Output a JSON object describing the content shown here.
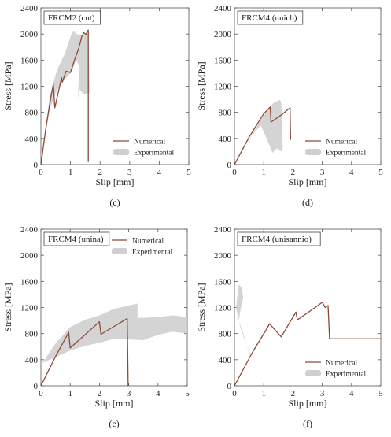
{
  "colors": {
    "numerical": "#8b4a36",
    "experimental": "#cfcfcf",
    "axis": "#555555"
  },
  "chart_data": [
    {
      "type": "line",
      "title": "FRCM2 (cut)",
      "panel_label": "(c)",
      "xlabel": "Slip [mm]",
      "ylabel": "Stress [MPa]",
      "xlim": [
        0,
        5
      ],
      "ylim": [
        0,
        2400
      ],
      "xticks": [
        0,
        1,
        2,
        3,
        4,
        5
      ],
      "yticks": [
        0,
        400,
        800,
        1200,
        1600,
        2000,
        2400
      ],
      "grid": false,
      "legend": [
        "Numerical",
        "Experimental"
      ],
      "legend_position": "bottom-right",
      "series": [
        {
          "name": "Numerical",
          "x": [
            0,
            0.18,
            0.35,
            0.42,
            0.47,
            0.7,
            0.72,
            0.85,
            1.0,
            1.15,
            1.28,
            1.38,
            1.45,
            1.52,
            1.58,
            1.6,
            1.6
          ],
          "y": [
            0,
            600,
            1070,
            1230,
            870,
            1330,
            1260,
            1430,
            1410,
            1620,
            1780,
            1960,
            2020,
            1990,
            2050,
            2060,
            40
          ]
        },
        {
          "name": "Experimental",
          "x": [
            0,
            0.3,
            0.5,
            0.6,
            0.8,
            1.0,
            1.1,
            1.2,
            1.5,
            1.6,
            1.65,
            1.45,
            1.3,
            1.25,
            1.3,
            1.2,
            1.0,
            0.7,
            0.5,
            0.3,
            0.15,
            0
          ],
          "y": [
            0,
            1050,
            1380,
            1500,
            1690,
            1960,
            2050,
            2000,
            1980,
            2020,
            1100,
            1080,
            1150,
            1000,
            1500,
            1600,
            1400,
            1250,
            1100,
            850,
            450,
            0
          ]
        }
      ]
    },
    {
      "type": "line",
      "title": "FRCM4 (unich)",
      "panel_label": "(d)",
      "xlabel": "Slip [mm]",
      "ylabel": "Stress [MPa]",
      "xlim": [
        0,
        5
      ],
      "ylim": [
        0,
        2400
      ],
      "xticks": [
        0,
        1,
        2,
        3,
        4,
        5
      ],
      "yticks": [
        0,
        400,
        800,
        1200,
        1600,
        2000,
        2400
      ],
      "grid": false,
      "legend": [
        "Numerical",
        "Experimental"
      ],
      "legend_position": "bottom-right",
      "series": [
        {
          "name": "Numerical",
          "x": [
            0,
            0.5,
            1.0,
            1.22,
            1.25,
            1.6,
            1.9,
            1.92
          ],
          "y": [
            0,
            420,
            780,
            880,
            650,
            760,
            870,
            380
          ]
        },
        {
          "name": "Experimental",
          "x": [
            0.4,
            0.8,
            1.1,
            1.35,
            1.55,
            1.6,
            1.65,
            1.6,
            1.45,
            1.3,
            1.1,
            0.9,
            0.6,
            0.4
          ],
          "y": [
            300,
            620,
            820,
            950,
            990,
            960,
            250,
            200,
            250,
            180,
            400,
            600,
            450,
            300
          ]
        }
      ]
    },
    {
      "type": "line",
      "title": "FRCM4 (unina)",
      "panel_label": "(e)",
      "xlabel": "Slip [mm]",
      "ylabel": "Stress [MPa]",
      "xlim": [
        0,
        5
      ],
      "ylim": [
        0,
        2400
      ],
      "xticks": [
        0,
        1,
        2,
        3,
        4,
        5
      ],
      "yticks": [
        0,
        400,
        800,
        1200,
        1600,
        2000,
        2400
      ],
      "grid": false,
      "legend": [
        "Numerical",
        "Experimental"
      ],
      "legend_position": "top-right",
      "series": [
        {
          "name": "Numerical",
          "x": [
            0,
            0.5,
            0.95,
            1.0,
            1.5,
            2.0,
            2.05,
            2.5,
            2.95,
            2.98
          ],
          "y": [
            0,
            450,
            820,
            580,
            780,
            980,
            790,
            910,
            1030,
            0
          ]
        },
        {
          "name": "Experimental",
          "x": [
            0.05,
            0.5,
            1.0,
            1.5,
            2.0,
            2.5,
            3.0,
            3.3,
            3.3,
            4.0,
            4.5,
            5.0,
            5.0,
            4.5,
            4.0,
            3.5,
            3.0,
            2.5,
            2.0,
            1.5,
            1.0,
            0.5,
            0.05
          ],
          "y": [
            350,
            650,
            900,
            1010,
            1080,
            1180,
            1230,
            1260,
            1040,
            1050,
            1080,
            1050,
            800,
            830,
            780,
            700,
            710,
            720,
            660,
            610,
            540,
            440,
            350
          ]
        }
      ]
    },
    {
      "type": "line",
      "title": "FRCM4 (unisannio)",
      "panel_label": "(f)",
      "xlabel": "Slip [mm]",
      "ylabel": "Stress [MPa]",
      "xlim": [
        0,
        5
      ],
      "ylim": [
        0,
        2400
      ],
      "xticks": [
        0,
        1,
        2,
        3,
        4,
        5
      ],
      "yticks": [
        0,
        400,
        800,
        1200,
        1600,
        2000,
        2400
      ],
      "grid": false,
      "legend": [
        "Numerical",
        "Experimental"
      ],
      "legend_position": "bottom-right",
      "series": [
        {
          "name": "Numerical",
          "x": [
            0,
            0.6,
            1.1,
            1.2,
            1.6,
            2.1,
            2.15,
            2.6,
            3.0,
            3.1,
            3.2,
            3.25,
            5.0
          ],
          "y": [
            0,
            500,
            870,
            950,
            750,
            1130,
            1010,
            1150,
            1280,
            1200,
            1230,
            720,
            720
          ]
        },
        {
          "name": "Experimental",
          "x": [
            0.05,
            0.15,
            0.25,
            0.3,
            0.22,
            0.15,
            0.3,
            0.5,
            0.6,
            0.35,
            0.2,
            0.05
          ],
          "y": [
            1200,
            1550,
            1500,
            1350,
            1200,
            1000,
            800,
            500,
            420,
            700,
            900,
            1200
          ]
        }
      ]
    }
  ]
}
